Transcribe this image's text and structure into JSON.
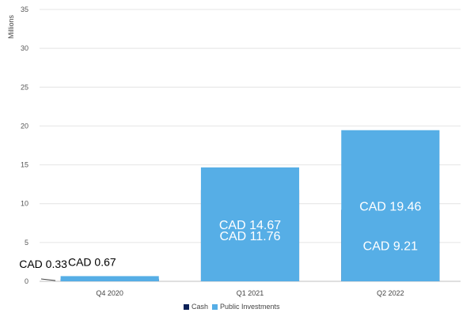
{
  "chart_data": {
    "type": "bar",
    "stacked": true,
    "categories": [
      "Q4 2020",
      "Q1 2021",
      "Q2 2022"
    ],
    "series": [
      {
        "name": "Cash",
        "values": [
          0.33,
          11.76,
          9.21
        ],
        "labels": [
          "CAD 0.33",
          "CAD 11.76",
          "CAD 9.21"
        ],
        "color": "#0b2157"
      },
      {
        "name": "Public Investments",
        "values": [
          0.67,
          14.67,
          19.46
        ],
        "labels": [
          "CAD 0.67",
          "CAD 14.67",
          "CAD 19.46"
        ],
        "color": "#56aee6"
      }
    ],
    "ylabel": "Millions",
    "xlabel": "",
    "ylim": [
      0,
      35
    ],
    "yticks": [
      0,
      5,
      10,
      15,
      20,
      25,
      30,
      35
    ],
    "grid": true,
    "legend": "bottom"
  }
}
